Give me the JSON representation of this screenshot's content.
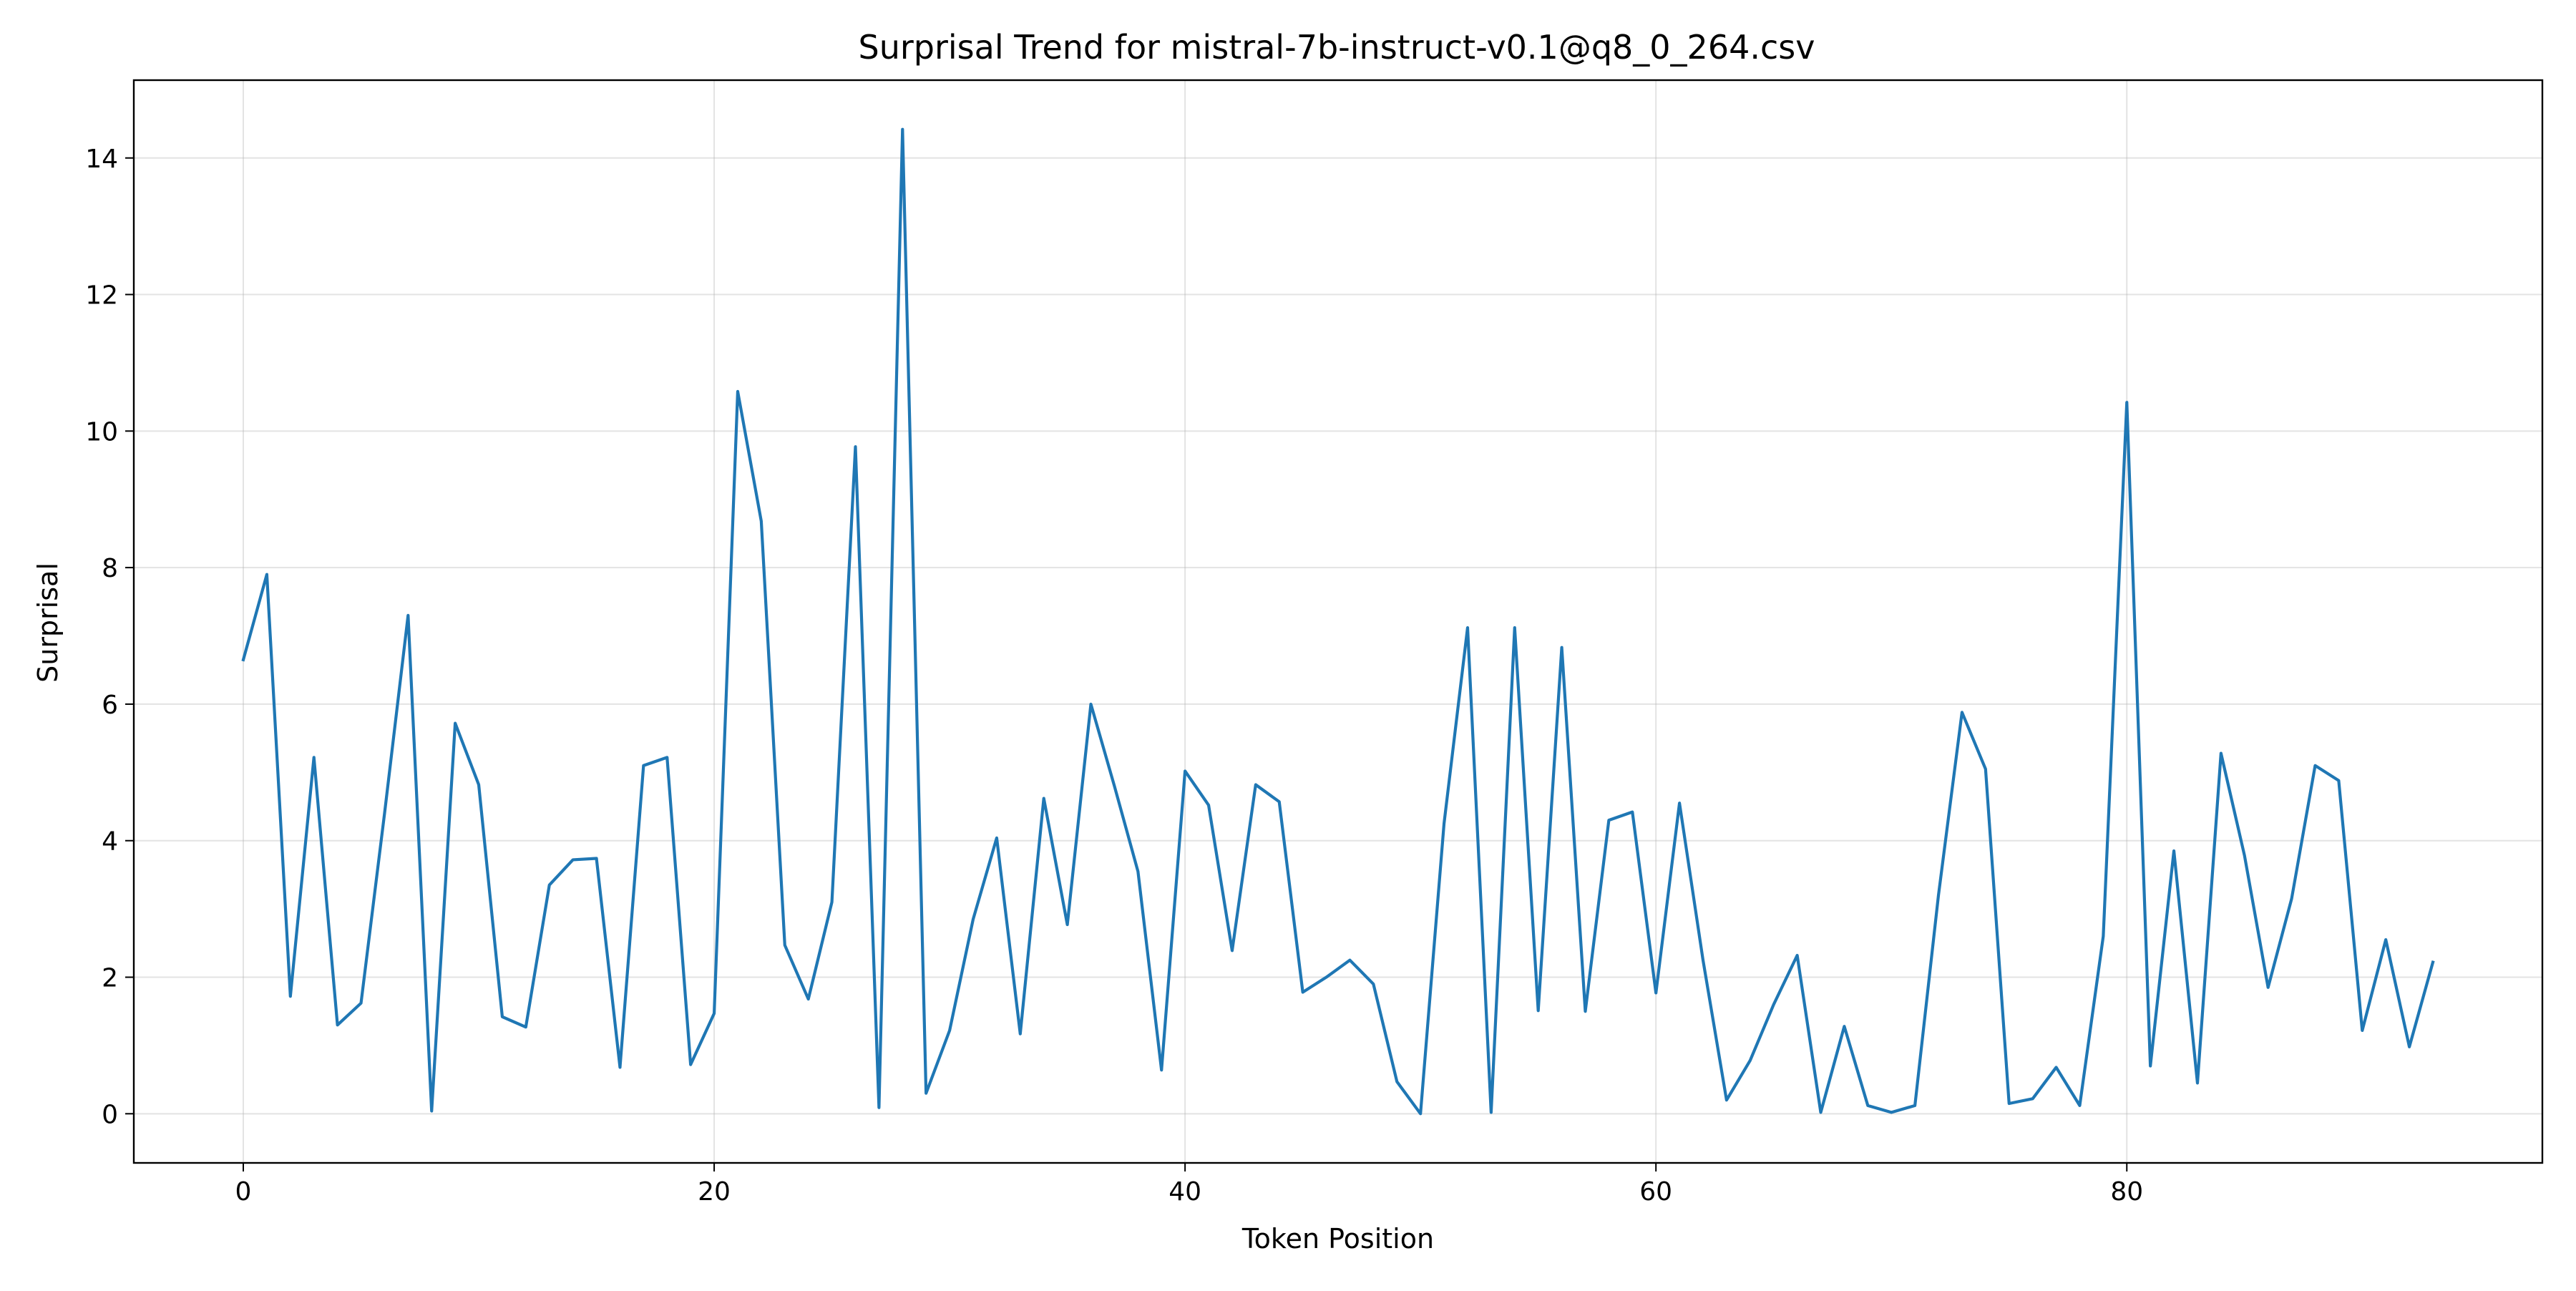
{
  "chart_data": {
    "type": "line",
    "title": "Surprisal Trend for mistral-7b-instruct-v0.1@q8_0_264.csv",
    "xlabel": "Token Position",
    "ylabel": "Surprisal",
    "xlim": [
      -4.65,
      97.65
    ],
    "ylim": [
      -0.72,
      15.14
    ],
    "xticks": [
      0,
      20,
      40,
      60,
      80
    ],
    "yticks": [
      0,
      2,
      4,
      6,
      8,
      10,
      12,
      14
    ],
    "grid": true,
    "line_color": "#1f77b4",
    "series": [
      {
        "x": [
          0,
          1,
          2,
          3,
          4,
          5,
          6,
          7,
          8,
          9,
          10,
          11,
          12,
          13,
          14,
          15,
          16,
          17,
          18,
          19,
          20,
          21,
          22,
          23,
          24,
          25,
          26,
          27,
          28,
          29,
          30,
          31,
          32,
          33,
          34,
          35,
          36,
          37,
          38,
          39,
          40,
          41,
          42,
          43,
          44,
          45,
          46,
          47,
          48,
          49,
          50,
          51,
          52,
          53,
          54,
          55,
          56,
          57,
          58,
          59,
          60,
          61,
          62,
          63,
          64,
          65,
          66,
          67,
          68,
          69,
          70,
          71,
          72,
          73,
          74,
          75,
          76,
          77,
          78,
          79,
          80,
          81,
          82,
          83,
          84,
          85,
          86,
          87,
          88,
          89,
          90,
          91,
          92,
          93
        ],
        "values": [
          6.65,
          7.9,
          1.72,
          5.22,
          1.3,
          1.62,
          4.4,
          7.3,
          0.04,
          5.72,
          4.82,
          1.42,
          1.27,
          3.35,
          3.72,
          3.74,
          0.68,
          5.1,
          5.22,
          0.72,
          1.47,
          10.58,
          8.68,
          2.47,
          1.68,
          3.1,
          9.77,
          0.09,
          14.42,
          0.3,
          1.22,
          2.85,
          4.04,
          1.17,
          4.62,
          2.77,
          6.0,
          4.8,
          3.55,
          0.64,
          5.02,
          4.52,
          2.39,
          4.82,
          4.57,
          1.78,
          2.0,
          2.25,
          1.9,
          0.47,
          0.0,
          4.25,
          7.12,
          0.02,
          7.12,
          1.51,
          6.83,
          1.5,
          4.3,
          4.42,
          1.77,
          4.55,
          2.25,
          0.2,
          0.78,
          1.6,
          2.32,
          0.02,
          1.28,
          0.12,
          0.02,
          0.12,
          3.2,
          5.88,
          5.05,
          0.15,
          0.22,
          0.68,
          0.12,
          2.6,
          10.42,
          0.7,
          3.85,
          0.45,
          5.28,
          3.78,
          1.85,
          3.15,
          5.1,
          4.88,
          1.22,
          2.55,
          0.98,
          2.22
        ]
      }
    ]
  }
}
